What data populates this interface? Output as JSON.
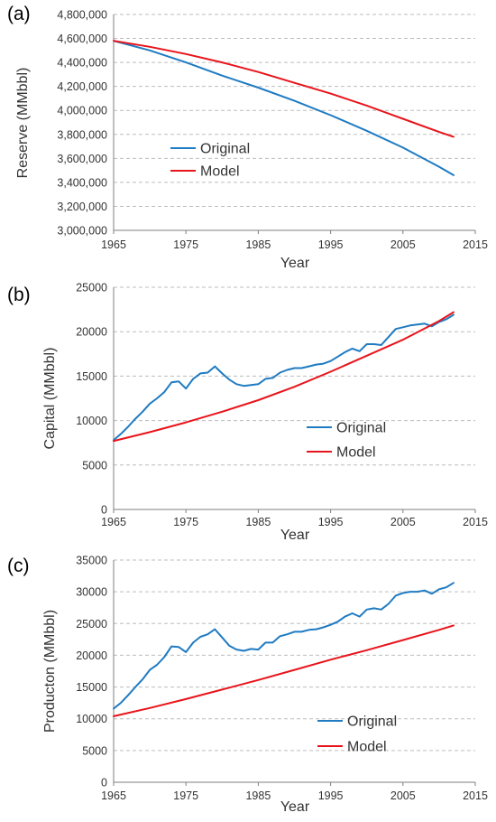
{
  "chart_data": [
    {
      "type": "line",
      "panel": "(a)",
      "xlabel": "Year",
      "ylabel": "Reserve (MMbbl)",
      "xlim": [
        1965,
        2015
      ],
      "ylim": [
        3000000,
        4800000
      ],
      "xticks": [
        1965,
        1975,
        1985,
        1995,
        2005,
        2015
      ],
      "yticks": [
        "3,000,000",
        "3,200,000",
        "3,400,000",
        "3,600,000",
        "3,800,000",
        "4,000,000",
        "4,200,000",
        "4,400,000",
        "4,600,000",
        "4,800,000"
      ],
      "grid": "horizontal dashed",
      "legend_position": "center-left",
      "series": [
        {
          "name": "Original",
          "color": "#1f7bc2",
          "x": [
            1965,
            1970,
            1975,
            1980,
            1985,
            1990,
            1995,
            2000,
            2005,
            2010,
            2012
          ],
          "values": [
            4580000,
            4500000,
            4400000,
            4290000,
            4190000,
            4080000,
            3960000,
            3830000,
            3690000,
            3530000,
            3460000
          ]
        },
        {
          "name": "Model",
          "color": "#e8141b",
          "x": [
            1965,
            1970,
            1975,
            1980,
            1985,
            1990,
            1995,
            2000,
            2005,
            2010,
            2012
          ],
          "values": [
            4580000,
            4530000,
            4470000,
            4400000,
            4320000,
            4230000,
            4140000,
            4040000,
            3930000,
            3820000,
            3780000
          ]
        }
      ]
    },
    {
      "type": "line",
      "panel": "(b)",
      "xlabel": "Year",
      "ylabel": "Capital (MMbbl)",
      "xlim": [
        1965,
        2015
      ],
      "ylim": [
        0,
        25000
      ],
      "xticks": [
        1965,
        1975,
        1985,
        1995,
        2005,
        2015
      ],
      "yticks": [
        "0",
        "5000",
        "10000",
        "15000",
        "20000",
        "25000"
      ],
      "grid": "horizontal dashed",
      "legend_position": "center-right",
      "series": [
        {
          "name": "Original",
          "color": "#1f7bc2",
          "x": [
            1965,
            1966,
            1967,
            1968,
            1969,
            1970,
            1971,
            1972,
            1973,
            1974,
            1975,
            1976,
            1977,
            1978,
            1979,
            1980,
            1981,
            1982,
            1983,
            1984,
            1985,
            1986,
            1987,
            1988,
            1989,
            1990,
            1991,
            1992,
            1993,
            1994,
            1995,
            1996,
            1997,
            1998,
            1999,
            2000,
            2001,
            2002,
            2003,
            2004,
            2005,
            2006,
            2007,
            2008,
            2009,
            2010,
            2011,
            2012
          ],
          "values": [
            7800,
            8500,
            9300,
            10200,
            11000,
            11900,
            12500,
            13200,
            14300,
            14400,
            13600,
            14700,
            15300,
            15400,
            16100,
            15300,
            14600,
            14100,
            13900,
            14000,
            14100,
            14700,
            14800,
            15400,
            15700,
            15900,
            15900,
            16100,
            16300,
            16400,
            16700,
            17200,
            17700,
            18100,
            17800,
            18600,
            18600,
            18500,
            19400,
            20300,
            20500,
            20700,
            20800,
            20900,
            20600,
            21100,
            21400,
            21900
          ]
        },
        {
          "name": "Model",
          "color": "#e8141b",
          "x": [
            1965,
            1970,
            1975,
            1980,
            1985,
            1990,
            1995,
            2000,
            2005,
            2010,
            2012
          ],
          "values": [
            7700,
            8700,
            9800,
            11000,
            12300,
            13800,
            15500,
            17300,
            19100,
            21200,
            22200
          ]
        }
      ]
    },
    {
      "type": "line",
      "panel": "(c)",
      "xlabel": "Year",
      "ylabel": "Producton (MMbbl)",
      "xlim": [
        1965,
        2015
      ],
      "ylim": [
        0,
        35000
      ],
      "xticks": [
        1965,
        1975,
        1985,
        1995,
        2005,
        2015
      ],
      "yticks": [
        "0",
        "5000",
        "10000",
        "15000",
        "20000",
        "25000",
        "30000",
        "35000"
      ],
      "grid": "horizontal dashed",
      "legend_position": "bottom-right",
      "series": [
        {
          "name": "Original",
          "color": "#1f7bc2",
          "x": [
            1965,
            1966,
            1967,
            1968,
            1969,
            1970,
            1971,
            1972,
            1973,
            1974,
            1975,
            1976,
            1977,
            1978,
            1979,
            1980,
            1981,
            1982,
            1983,
            1984,
            1985,
            1986,
            1987,
            1988,
            1989,
            1990,
            1991,
            1992,
            1993,
            1994,
            1995,
            1996,
            1997,
            1998,
            1999,
            2000,
            2001,
            2002,
            2003,
            2004,
            2005,
            2006,
            2007,
            2008,
            2009,
            2010,
            2011,
            2012
          ],
          "values": [
            11600,
            12500,
            13700,
            15000,
            16200,
            17700,
            18500,
            19700,
            21400,
            21300,
            20500,
            22000,
            22900,
            23300,
            24100,
            22800,
            21500,
            20900,
            20700,
            21000,
            20900,
            22000,
            22000,
            23000,
            23300,
            23700,
            23700,
            24000,
            24100,
            24400,
            24800,
            25300,
            26100,
            26600,
            26100,
            27200,
            27400,
            27200,
            28100,
            29400,
            29800,
            30000,
            30000,
            30200,
            29700,
            30400,
            30700,
            31400
          ]
        },
        {
          "name": "Model",
          "color": "#e8141b",
          "x": [
            1965,
            1970,
            1975,
            1980,
            1985,
            1990,
            1995,
            2000,
            2005,
            2010,
            2012
          ],
          "values": [
            10400,
            11700,
            13100,
            14600,
            16100,
            17700,
            19300,
            20800,
            22400,
            24000,
            24700
          ]
        }
      ]
    }
  ]
}
